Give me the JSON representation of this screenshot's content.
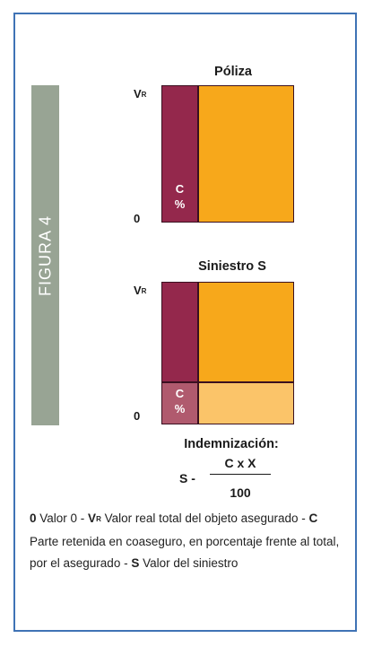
{
  "figure_label": "FIGURA 4",
  "top_chart": {
    "title": "Póliza",
    "y_top_label": "V",
    "y_top_sub": "R",
    "y_bottom_label": "0",
    "coinsurance_label_line1": "C",
    "coinsurance_label_line2": "%"
  },
  "bottom_chart": {
    "title": "Siniestro S",
    "y_top_label": "V",
    "y_top_sub": "R",
    "y_bottom_label": "0",
    "coinsurance_label_line1": "C",
    "coinsurance_label_line2": "%"
  },
  "formula": {
    "title": "Indemnización:",
    "lhs": "S -",
    "numerator": "C x X",
    "denominator": "100"
  },
  "legend": {
    "k0": "0",
    "t0": " Valor 0 - ",
    "k1": "V",
    "k1_sub": "R",
    "t1": " Valor real total del objeto asegurado - ",
    "k2": "C",
    "t2": " Parte retenida en coaseguro, en porcentaje frente al total, por el asegurado - ",
    "k3": "S",
    "t3": " Valor del siniestro"
  },
  "colors": {
    "frame": "#3f73b5",
    "side_label": "#98a494",
    "coinsurance": "#94284c",
    "insured": "#f7a81b",
    "claim_coinsurance": "#b05a6e",
    "claim_insured": "#fbc469"
  }
}
